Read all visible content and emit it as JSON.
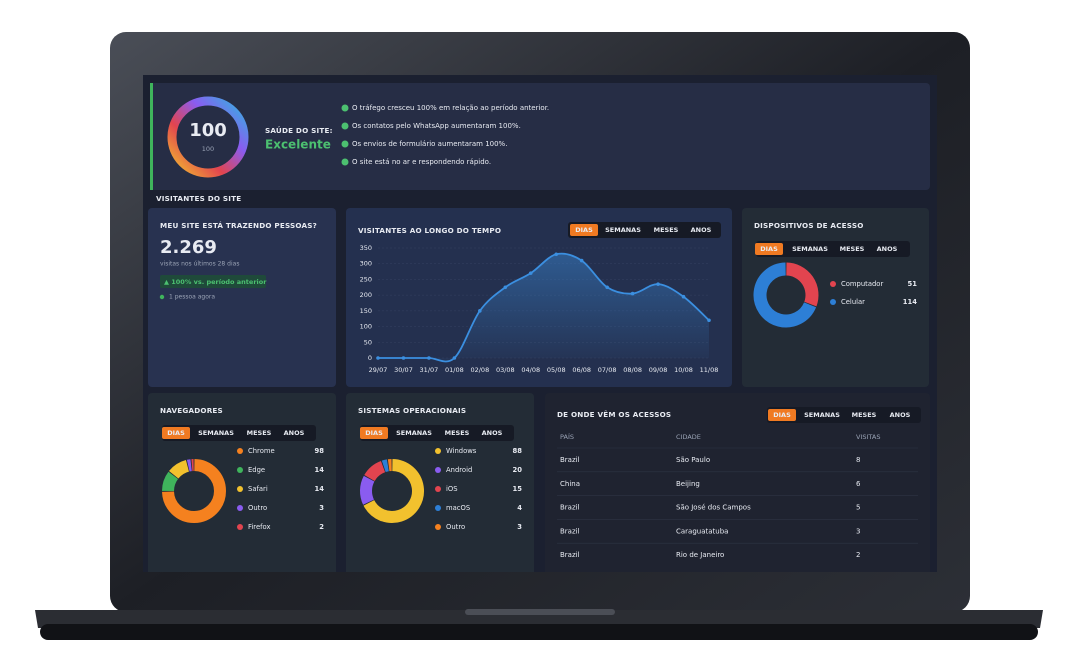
{
  "health": {
    "score": 100,
    "max": 100,
    "label": "SAÚDE DO SITE:",
    "status": "Excelente",
    "messages": [
      "O tráfego cresceu 100% em relação ao período anterior.",
      "Os contatos pelo WhatsApp aumentaram 100%.",
      "Os envios de formulário aumentaram 100%.",
      "O site está no ar e respondendo rápido."
    ]
  },
  "section_title": "VISITANTES DO SITE",
  "summary": {
    "title": "MEU SITE ESTÁ TRAZENDO PESSOAS?",
    "total": "2.269",
    "caption": "visitas nos últimos 28 dias",
    "change": "▲ 100% vs. período anterior",
    "online": "1 pessoa agora"
  },
  "chart_data": [
    {
      "type": "line",
      "title": "VISITANTES AO LONGO DO TEMPO",
      "tabs": [
        "DIAS",
        "SEMANAS",
        "MESES",
        "ANOS"
      ],
      "categories": [
        "29/07",
        "30/07",
        "31/07",
        "01/08",
        "02/08",
        "03/08",
        "04/08",
        "05/08",
        "06/08",
        "07/08",
        "08/08",
        "09/08",
        "10/08",
        "11/08"
      ],
      "values": [
        0,
        0,
        0,
        0,
        150,
        225,
        270,
        330,
        310,
        225,
        205,
        235,
        195,
        120
      ],
      "color": "#3b8fe0",
      "ylim": [
        0,
        350
      ],
      "yticks": [
        0,
        50,
        100,
        150,
        200,
        250,
        300,
        350
      ],
      "grid": true
    },
    {
      "type": "pie",
      "title": "DISPOSITIVOS DE ACESSO",
      "tabs": [
        "DIAS",
        "SEMANAS",
        "MESES",
        "ANOS"
      ],
      "categories": [
        "Computador",
        "Celular"
      ],
      "values": [
        51,
        114
      ],
      "colors": [
        "#e2444f",
        "#2d7fd6"
      ]
    },
    {
      "type": "pie",
      "title": "NAVEGADORES",
      "tabs": [
        "DIAS",
        "SEMANAS",
        "MESES",
        "ANOS"
      ],
      "categories": [
        "Chrome",
        "Edge",
        "Safari",
        "Outro",
        "Firefox"
      ],
      "values": [
        98,
        14,
        14,
        3,
        2
      ],
      "colors": [
        "#f5811f",
        "#3fb45c",
        "#f2c12e",
        "#8a5cf0",
        "#e2444f"
      ]
    },
    {
      "type": "pie",
      "title": "SISTEMAS OPERACIONAIS",
      "tabs": [
        "DIAS",
        "SEMANAS",
        "MESES",
        "ANOS"
      ],
      "categories": [
        "Windows",
        "Android",
        "iOS",
        "macOS",
        "Outro"
      ],
      "values": [
        88,
        20,
        15,
        4,
        3
      ],
      "colors": [
        "#f2c12e",
        "#8a5cf0",
        "#e2444f",
        "#2d7fd6",
        "#f5811f"
      ]
    }
  ],
  "table": {
    "title": "DE ONDE VÊM OS ACESSOS",
    "tabs": [
      "DIAS",
      "SEMANAS",
      "MESES",
      "ANOS"
    ],
    "columns": [
      "PAÍS",
      "CIDADE",
      "VISITAS"
    ],
    "rows": [
      [
        "Brazil",
        "São Paulo",
        8
      ],
      [
        "China",
        "Beijing",
        6
      ],
      [
        "Brazil",
        "São José dos Campos",
        5
      ],
      [
        "Brazil",
        "Caraguatatuba",
        3
      ],
      [
        "Brazil",
        "Rio de Janeiro",
        2
      ]
    ]
  }
}
